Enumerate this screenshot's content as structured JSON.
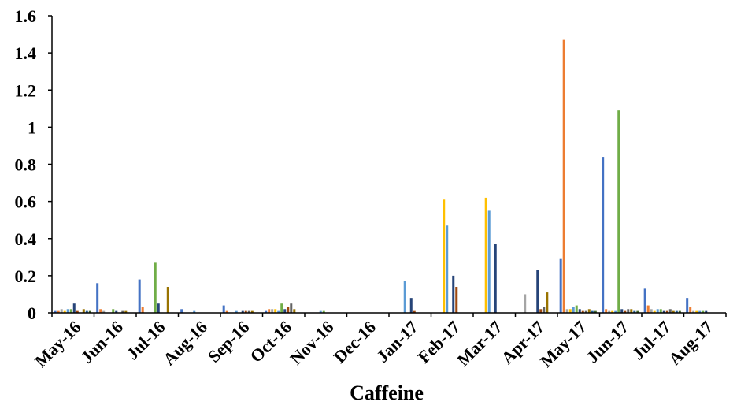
{
  "chart_data": {
    "type": "bar",
    "xlabel": "Caffeine",
    "ylabel": "",
    "ylim": [
      0,
      1.6
    ],
    "y_ticks": [
      "0",
      "0.2",
      "0.4",
      "0.6",
      "0.8",
      "1",
      "1.2",
      "1.4",
      "1.6"
    ],
    "grid": false,
    "legend": "none",
    "categories": [
      "May-16",
      "Jun-16",
      "Jul-16",
      "Aug-16",
      "Sep-16",
      "Oct-16",
      "Nov-16",
      "Dec-16",
      "Jan-17",
      "Feb-17",
      "Mar-17",
      "Apr-17",
      "May-17",
      "Jun-17",
      "Jul-17",
      "Aug-17"
    ],
    "series_colors": [
      "#4472C4",
      "#ED7D31",
      "#A5A5A5",
      "#FFC000",
      "#5B9BD5",
      "#70AD47",
      "#264478",
      "#9E480E",
      "#636363",
      "#997300",
      "#255E91",
      "#43682B"
    ],
    "series": [
      {
        "values": [
          0.01,
          0.16,
          0.18,
          0.02,
          0.04,
          0.01,
          0.0,
          0.0,
          0.0,
          0.0,
          0.0,
          0.0,
          0.29,
          0.84,
          0.13,
          0.08
        ]
      },
      {
        "values": [
          0.01,
          0.02,
          0.03,
          0.0,
          0.01,
          0.02,
          0.0,
          0.0,
          0.0,
          0.0,
          0.0,
          0.0,
          1.47,
          0.02,
          0.04,
          0.03
        ]
      },
      {
        "values": [
          0.02,
          0.01,
          0.0,
          0.0,
          0.0,
          0.02,
          0.0,
          0.0,
          0.0,
          0.0,
          0.0,
          0.1,
          0.02,
          0.01,
          0.02,
          0.01
        ]
      },
      {
        "values": [
          0.01,
          0.0,
          0.0,
          0.0,
          0.0,
          0.02,
          0.0,
          0.0,
          0.0,
          0.61,
          0.62,
          0.0,
          0.02,
          0.01,
          0.01,
          0.01
        ]
      },
      {
        "values": [
          0.02,
          0.0,
          0.0,
          0.01,
          0.01,
          0.01,
          0.01,
          0.0,
          0.17,
          0.47,
          0.55,
          0.0,
          0.03,
          0.01,
          0.02,
          0.01
        ]
      },
      {
        "values": [
          0.02,
          0.02,
          0.27,
          0.0,
          0.0,
          0.05,
          0.01,
          0.0,
          0.0,
          0.0,
          0.0,
          0.0,
          0.04,
          1.09,
          0.02,
          0.01
        ]
      },
      {
        "values": [
          0.05,
          0.01,
          0.05,
          0.0,
          0.01,
          0.02,
          0.0,
          0.0,
          0.08,
          0.2,
          0.37,
          0.23,
          0.02,
          0.02,
          0.01,
          0.01
        ]
      },
      {
        "values": [
          0.01,
          0.0,
          0.0,
          0.0,
          0.01,
          0.03,
          0.0,
          0.0,
          0.01,
          0.14,
          0.0,
          0.02,
          0.01,
          0.01,
          0.01,
          0.0
        ]
      },
      {
        "values": [
          0.0,
          0.01,
          0.0,
          0.0,
          0.01,
          0.05,
          0.0,
          0.0,
          0.0,
          0.0,
          0.0,
          0.03,
          0.01,
          0.02,
          0.02,
          0.0
        ]
      },
      {
        "values": [
          0.02,
          0.01,
          0.14,
          0.0,
          0.01,
          0.02,
          0.0,
          0.0,
          0.0,
          0.0,
          0.0,
          0.11,
          0.02,
          0.02,
          0.01,
          0.0
        ]
      },
      {
        "values": [
          0.01,
          0.0,
          0.0,
          0.0,
          0.0,
          0.0,
          0.0,
          0.0,
          0.0,
          0.0,
          0.0,
          0.0,
          0.01,
          0.01,
          0.01,
          0.0
        ]
      },
      {
        "values": [
          0.01,
          0.0,
          0.0,
          0.0,
          0.0,
          0.0,
          0.0,
          0.0,
          0.0,
          0.0,
          0.0,
          0.0,
          0.01,
          0.01,
          0.01,
          0.0
        ]
      }
    ]
  }
}
